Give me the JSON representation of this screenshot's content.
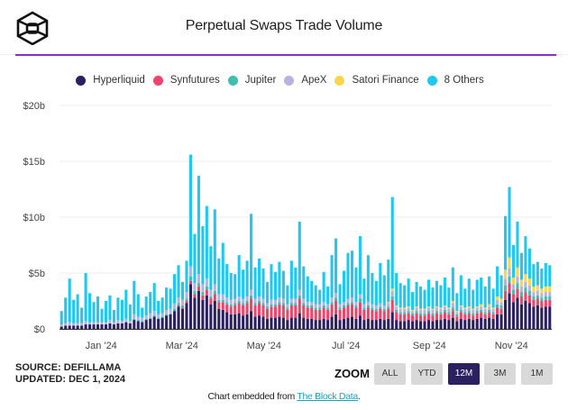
{
  "header": {
    "title": "Perpetual Swaps Trade Volume",
    "logo": "the-block-cube-logo"
  },
  "legend": [
    {
      "name": "Hyperliquid",
      "color": "#2b2161"
    },
    {
      "name": "Synfutures",
      "color": "#f0456b"
    },
    {
      "name": "Jupiter",
      "color": "#3dbfb0"
    },
    {
      "name": "ApeX",
      "color": "#b7b3e0"
    },
    {
      "name": "Satori Finance",
      "color": "#fad64c"
    },
    {
      "name": "8 Others",
      "color": "#1ec8f0"
    }
  ],
  "footer": {
    "source": "SOURCE: DEFILLAMA",
    "updated": "UPDATED: DEC 1, 2024",
    "zoom_label": "ZOOM",
    "zoom_buttons": [
      {
        "label": "ALL",
        "active": false
      },
      {
        "label": "YTD",
        "active": false
      },
      {
        "label": "12M",
        "active": true
      },
      {
        "label": "3M",
        "active": false
      },
      {
        "label": "1M",
        "active": false
      }
    ],
    "embed_prefix": "Chart embedded from ",
    "embed_link": "The Block Data",
    "embed_suffix": "."
  },
  "chart_data": {
    "type": "bar",
    "stacked": true,
    "title": "Perpetual Swaps Trade Volume",
    "xlabel": "",
    "ylabel": "",
    "x_range": [
      "2023-12-01",
      "2024-12-01"
    ],
    "sample_interval_days": 3,
    "ylim": [
      0,
      20
    ],
    "y_unit": "$b",
    "y_ticks": [
      "$0",
      "$5b",
      "$10b",
      "$15b",
      "$20b"
    ],
    "y_tick_values": [
      0,
      5,
      10,
      15,
      20
    ],
    "x_ticks": [
      "Jan '24",
      "Mar '24",
      "May '24",
      "Jul '24",
      "Sep '24",
      "Nov '24"
    ],
    "x_tick_dates": [
      "2024-01-01",
      "2024-03-01",
      "2024-05-01",
      "2024-07-01",
      "2024-09-01",
      "2024-11-01"
    ],
    "grid": true,
    "legend_position": "top-center",
    "totals": [
      1.6,
      2.8,
      4.5,
      2.6,
      3.1,
      1.9,
      5.0,
      3.2,
      2.4,
      2.9,
      1.8,
      2.5,
      3.0,
      1.7,
      2.8,
      2.6,
      3.5,
      2.2,
      4.3,
      3.1,
      1.9,
      2.9,
      3.3,
      4.1,
      2.5,
      2.8,
      3.7,
      3.6,
      4.9,
      5.7,
      4.2,
      6.1,
      15.6,
      8.5,
      13.7,
      9.2,
      11.0,
      7.4,
      10.7,
      6.3,
      7.7,
      5.8,
      5.0,
      4.9,
      6.6,
      5.3,
      6.1,
      10.3,
      5.5,
      6.3,
      5.4,
      4.2,
      5.8,
      5.1,
      6.0,
      5.2,
      3.9,
      6.1,
      5.5,
      9.6,
      5.6,
      4.7,
      4.3,
      3.9,
      3.5,
      5.1,
      3.8,
      6.6,
      8.1,
      4.0,
      5.2,
      6.8,
      7.0,
      5.5,
      8.3,
      4.5,
      6.6,
      5.0,
      4.3,
      5.9,
      4.8,
      6.2,
      11.8,
      5.0,
      4.1,
      3.9,
      4.5,
      3.3,
      4.2,
      3.8,
      3.5,
      4.4,
      3.7,
      4.3,
      3.9,
      4.6,
      3.7,
      5.5,
      3.2,
      4.8,
      3.6,
      4.5,
      3.5,
      4.4,
      4.6,
      3.8,
      4.7,
      3.6,
      5.6,
      4.8,
      10.1,
      12.7,
      7.5,
      9.4,
      6.8,
      8.3,
      7.2,
      5.8,
      6.0,
      5.4,
      5.9,
      5.7
    ],
    "series": [
      {
        "name": "Hyperliquid",
        "color": "#2b2161",
        "values": [
          0.2,
          0.3,
          0.3,
          0.3,
          0.3,
          0.3,
          0.4,
          0.4,
          0.4,
          0.4,
          0.4,
          0.4,
          0.5,
          0.4,
          0.5,
          0.5,
          0.6,
          0.5,
          0.8,
          0.7,
          0.6,
          0.8,
          0.9,
          1.1,
          0.9,
          1.0,
          1.2,
          1.3,
          1.6,
          2.0,
          1.8,
          2.3,
          4.0,
          2.8,
          3.4,
          2.6,
          3.0,
          2.2,
          2.5,
          1.8,
          1.7,
          1.5,
          1.3,
          1.3,
          1.4,
          1.2,
          1.3,
          1.6,
          1.1,
          1.2,
          1.1,
          0.9,
          1.0,
          1.0,
          1.1,
          1.0,
          0.8,
          1.0,
          1.0,
          1.4,
          1.0,
          0.9,
          0.9,
          0.8,
          0.8,
          0.9,
          0.8,
          1.1,
          1.3,
          0.8,
          0.9,
          1.0,
          1.1,
          0.9,
          1.2,
          0.8,
          0.9,
          0.8,
          0.8,
          0.9,
          0.8,
          0.9,
          1.5,
          0.8,
          0.7,
          0.7,
          0.8,
          0.7,
          0.8,
          0.7,
          0.7,
          0.8,
          0.7,
          0.8,
          0.8,
          0.9,
          0.8,
          1.0,
          0.7,
          0.9,
          0.8,
          0.9,
          0.8,
          0.9,
          1.0,
          0.9,
          1.0,
          0.9,
          1.3,
          1.3,
          2.6,
          3.2,
          2.4,
          2.8,
          2.2,
          2.5,
          2.3,
          2.0,
          2.1,
          1.9,
          2.0,
          2.0
        ]
      },
      {
        "name": "Synfutures",
        "color": "#f0456b",
        "values": [
          0.0,
          0.0,
          0.0,
          0.0,
          0.0,
          0.0,
          0.0,
          0.0,
          0.0,
          0.0,
          0.0,
          0.0,
          0.0,
          0.0,
          0.0,
          0.0,
          0.0,
          0.0,
          0.0,
          0.0,
          0.0,
          0.0,
          0.0,
          0.0,
          0.0,
          0.0,
          0.0,
          0.0,
          0.0,
          0.1,
          0.1,
          0.2,
          0.3,
          0.3,
          0.4,
          0.4,
          0.5,
          0.5,
          0.6,
          0.6,
          0.7,
          0.7,
          0.7,
          0.8,
          0.9,
          0.9,
          1.0,
          1.1,
          1.0,
          1.1,
          1.0,
          0.9,
          1.0,
          1.0,
          1.1,
          1.1,
          0.9,
          1.1,
          1.1,
          1.3,
          1.1,
          1.0,
          1.0,
          0.9,
          0.9,
          1.0,
          0.9,
          1.1,
          1.2,
          0.9,
          1.0,
          1.1,
          1.1,
          1.0,
          1.2,
          0.9,
          1.0,
          0.9,
          0.8,
          0.9,
          0.8,
          0.9,
          1.1,
          0.7,
          0.6,
          0.6,
          0.6,
          0.5,
          0.6,
          0.5,
          0.5,
          0.6,
          0.5,
          0.6,
          0.5,
          0.6,
          0.5,
          0.6,
          0.4,
          0.6,
          0.5,
          0.5,
          0.4,
          0.5,
          0.5,
          0.4,
          0.5,
          0.4,
          0.6,
          0.5,
          0.8,
          0.9,
          0.7,
          0.8,
          0.7,
          0.8,
          0.7,
          0.6,
          0.6,
          0.6,
          0.6,
          0.6
        ]
      },
      {
        "name": "Jupiter",
        "color": "#3dbfb0",
        "values": [
          0.0,
          0.0,
          0.0,
          0.0,
          0.0,
          0.0,
          0.0,
          0.0,
          0.0,
          0.0,
          0.0,
          0.0,
          0.0,
          0.0,
          0.0,
          0.0,
          0.0,
          0.0,
          0.1,
          0.1,
          0.1,
          0.1,
          0.1,
          0.1,
          0.1,
          0.1,
          0.1,
          0.1,
          0.2,
          0.2,
          0.2,
          0.2,
          0.4,
          0.3,
          0.3,
          0.3,
          0.3,
          0.2,
          0.3,
          0.2,
          0.2,
          0.2,
          0.2,
          0.2,
          0.2,
          0.2,
          0.2,
          0.3,
          0.2,
          0.2,
          0.2,
          0.2,
          0.2,
          0.2,
          0.2,
          0.2,
          0.2,
          0.2,
          0.2,
          0.3,
          0.2,
          0.2,
          0.2,
          0.2,
          0.2,
          0.2,
          0.2,
          0.2,
          0.3,
          0.2,
          0.2,
          0.2,
          0.2,
          0.2,
          0.3,
          0.2,
          0.2,
          0.2,
          0.2,
          0.2,
          0.2,
          0.2,
          0.3,
          0.2,
          0.2,
          0.2,
          0.2,
          0.2,
          0.2,
          0.2,
          0.2,
          0.2,
          0.2,
          0.2,
          0.2,
          0.2,
          0.2,
          0.3,
          0.2,
          0.2,
          0.2,
          0.2,
          0.2,
          0.2,
          0.2,
          0.2,
          0.2,
          0.2,
          0.3,
          0.3,
          0.5,
          0.6,
          0.4,
          0.5,
          0.4,
          0.4,
          0.4,
          0.3,
          0.3,
          0.3,
          0.3,
          0.3
        ]
      },
      {
        "name": "ApeX",
        "color": "#b7b3e0",
        "values": [
          0.2,
          0.2,
          0.3,
          0.2,
          0.2,
          0.2,
          0.3,
          0.2,
          0.2,
          0.2,
          0.2,
          0.2,
          0.3,
          0.2,
          0.3,
          0.2,
          0.3,
          0.2,
          0.4,
          0.3,
          0.3,
          0.3,
          0.4,
          0.4,
          0.3,
          0.3,
          0.4,
          0.4,
          0.5,
          0.5,
          0.5,
          0.6,
          0.9,
          0.7,
          0.8,
          0.7,
          0.7,
          0.6,
          0.6,
          0.5,
          0.5,
          0.4,
          0.4,
          0.4,
          0.4,
          0.4,
          0.4,
          0.5,
          0.4,
          0.4,
          0.4,
          0.3,
          0.4,
          0.4,
          0.4,
          0.4,
          0.3,
          0.4,
          0.4,
          0.5,
          0.4,
          0.3,
          0.3,
          0.3,
          0.3,
          0.3,
          0.3,
          0.4,
          0.4,
          0.3,
          0.3,
          0.4,
          0.4,
          0.3,
          0.4,
          0.3,
          0.3,
          0.3,
          0.3,
          0.3,
          0.3,
          0.3,
          0.5,
          0.3,
          0.3,
          0.3,
          0.3,
          0.2,
          0.3,
          0.3,
          0.3,
          0.3,
          0.3,
          0.3,
          0.3,
          0.3,
          0.3,
          0.4,
          0.2,
          0.3,
          0.3,
          0.3,
          0.3,
          0.3,
          0.3,
          0.3,
          0.3,
          0.3,
          0.4,
          0.3,
          0.6,
          0.7,
          0.5,
          0.6,
          0.5,
          0.5,
          0.5,
          0.4,
          0.4,
          0.4,
          0.4,
          0.4
        ]
      },
      {
        "name": "Satori Finance",
        "color": "#fad64c",
        "values": [
          0.0,
          0.0,
          0.0,
          0.0,
          0.0,
          0.0,
          0.0,
          0.0,
          0.0,
          0.0,
          0.0,
          0.0,
          0.0,
          0.0,
          0.0,
          0.0,
          0.0,
          0.0,
          0.0,
          0.0,
          0.0,
          0.0,
          0.0,
          0.0,
          0.0,
          0.0,
          0.0,
          0.0,
          0.0,
          0.0,
          0.0,
          0.0,
          0.0,
          0.0,
          0.0,
          0.0,
          0.0,
          0.0,
          0.0,
          0.0,
          0.0,
          0.0,
          0.0,
          0.0,
          0.0,
          0.0,
          0.0,
          0.0,
          0.0,
          0.0,
          0.0,
          0.0,
          0.0,
          0.0,
          0.0,
          0.0,
          0.0,
          0.0,
          0.0,
          0.0,
          0.0,
          0.0,
          0.0,
          0.0,
          0.0,
          0.0,
          0.0,
          0.0,
          0.0,
          0.0,
          0.0,
          0.0,
          0.0,
          0.0,
          0.0,
          0.0,
          0.0,
          0.0,
          0.0,
          0.0,
          0.0,
          0.1,
          0.2,
          0.1,
          0.1,
          0.1,
          0.1,
          0.1,
          0.1,
          0.1,
          0.1,
          0.1,
          0.1,
          0.1,
          0.1,
          0.1,
          0.1,
          0.2,
          0.1,
          0.1,
          0.1,
          0.1,
          0.1,
          0.1,
          0.2,
          0.1,
          0.2,
          0.1,
          0.3,
          0.3,
          0.8,
          1.0,
          0.6,
          0.8,
          0.6,
          0.7,
          0.6,
          0.5,
          0.5,
          0.4,
          0.5,
          0.5
        ]
      },
      {
        "name": "8 Others",
        "color": "#1ec8f0",
        "values": [
          1.2,
          2.3,
          3.9,
          2.1,
          2.6,
          1.4,
          4.3,
          2.6,
          1.8,
          2.3,
          1.2,
          1.9,
          2.2,
          1.1,
          2.0,
          1.9,
          2.6,
          1.5,
          3.0,
          2.0,
          0.9,
          1.7,
          1.9,
          2.5,
          1.2,
          1.4,
          2.0,
          1.8,
          2.6,
          2.9,
          1.6,
          2.8,
          10.0,
          4.4,
          8.8,
          5.2,
          6.5,
          3.9,
          6.7,
          3.2,
          4.6,
          3.0,
          2.4,
          2.2,
          3.7,
          2.6,
          3.2,
          6.8,
          2.8,
          3.4,
          2.7,
          1.9,
          3.2,
          2.5,
          3.2,
          2.5,
          1.7,
          3.4,
          2.8,
          6.1,
          2.9,
          2.3,
          1.9,
          1.7,
          1.3,
          2.7,
          1.6,
          3.8,
          4.9,
          1.8,
          2.8,
          4.1,
          4.2,
          3.1,
          5.2,
          2.3,
          4.2,
          2.8,
          2.2,
          3.6,
          2.7,
          3.8,
          8.2,
          2.9,
          2.2,
          2.0,
          2.5,
          1.6,
          2.2,
          2.0,
          1.7,
          2.4,
          1.9,
          2.3,
          2.0,
          2.5,
          1.8,
          3.0,
          1.6,
          2.7,
          1.7,
          2.5,
          1.7,
          2.4,
          2.4,
          1.9,
          2.5,
          1.7,
          2.7,
          2.1,
          4.8,
          6.3,
          2.9,
          4.1,
          2.4,
          3.4,
          2.7,
          2.0,
          2.1,
          1.8,
          2.1,
          1.9
        ]
      }
    ]
  }
}
